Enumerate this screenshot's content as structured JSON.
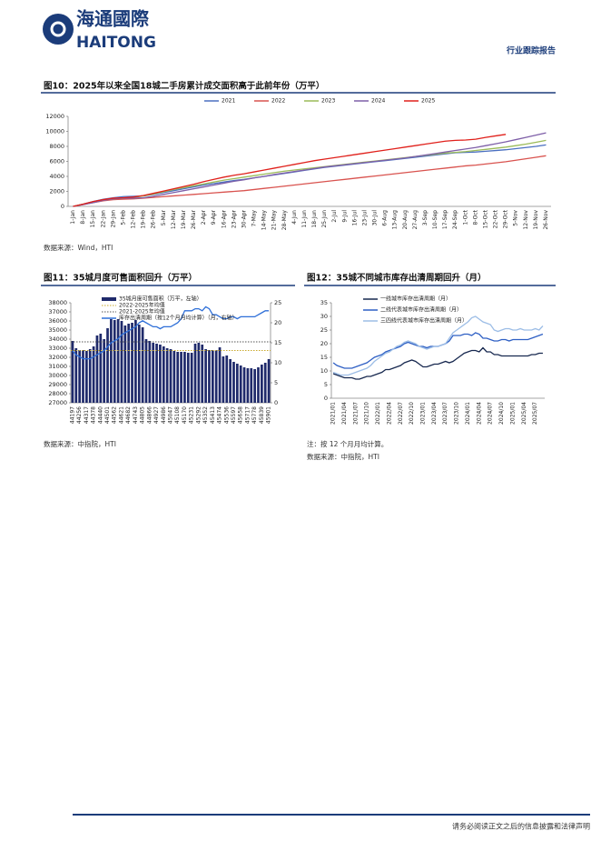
{
  "header": {
    "logo_cn": "海通國際",
    "logo_en": "HAITONG",
    "report_type": "行业跟踪报告"
  },
  "footer": "请务必阅读正文之后的信息披露和法律声明",
  "chart_data": [
    {
      "type": "line",
      "title": "图10：2025年以来全国18城二手房累计成交面积高于此前年份（万平）",
      "source": "数据来源：Wind，HTI",
      "categories": [
        "1-Jan",
        "8-Jan",
        "15-Jan",
        "22-Jan",
        "29-Jan",
        "5-Feb",
        "12-Feb",
        "19-Feb",
        "26-Feb",
        "5-Mar",
        "12-Mar",
        "19-Mar",
        "26-Mar",
        "2-Apr",
        "9-Apr",
        "16-Apr",
        "23-Apr",
        "30-Apr",
        "7-May",
        "14-May",
        "21-May",
        "28-May",
        "4-Jun",
        "11-Jun",
        "18-Jun",
        "25-Jun",
        "2-Jul",
        "9-Jul",
        "16-Jul",
        "23-Jul",
        "30-Jul",
        "6-Aug",
        "13-Aug",
        "20-Aug",
        "27-Aug",
        "3-Sep",
        "10-Sep",
        "17-Sep",
        "24-Sep",
        "1-Oct",
        "8-Oct",
        "15-Oct",
        "22-Oct",
        "29-Oct",
        "5-Nov",
        "12-Nov",
        "19-Nov",
        "26-Nov"
      ],
      "series": [
        {
          "name": "2021",
          "color": "#4a6fc0",
          "values": [
            0,
            300,
            650,
            950,
            1150,
            1300,
            1350,
            1400,
            1600,
            1850,
            2100,
            2350,
            2600,
            2850,
            3050,
            3250,
            3450,
            3600,
            3800,
            4000,
            4200,
            4400,
            4600,
            4800,
            5000,
            5200,
            5350,
            5500,
            5650,
            5800,
            5950,
            6100,
            6250,
            6400,
            6550,
            6700,
            6850,
            7000,
            7150,
            7200,
            7250,
            7350,
            7450,
            7550,
            7700,
            7850,
            8000,
            8200
          ]
        },
        {
          "name": "2022",
          "color": "#d9534f",
          "values": [
            0,
            250,
            500,
            750,
            900,
            950,
            1000,
            1100,
            1200,
            1300,
            1400,
            1500,
            1600,
            1700,
            1800,
            1900,
            2000,
            2100,
            2250,
            2400,
            2550,
            2700,
            2850,
            3000,
            3150,
            3300,
            3450,
            3600,
            3750,
            3900,
            4050,
            4200,
            4350,
            4500,
            4650,
            4800,
            4950,
            5100,
            5250,
            5400,
            5500,
            5650,
            5800,
            5950,
            6150,
            6350,
            6550,
            6750
          ]
        },
        {
          "name": "2023",
          "color": "#9bbb59",
          "values": [
            0,
            300,
            600,
            850,
            1000,
            1100,
            1200,
            1400,
            1650,
            1950,
            2250,
            2500,
            2750,
            3000,
            3250,
            3500,
            3700,
            3900,
            4100,
            4300,
            4500,
            4700,
            4850,
            5000,
            5150,
            5300,
            5450,
            5600,
            5750,
            5900,
            6050,
            6200,
            6350,
            6500,
            6650,
            6800,
            6950,
            7100,
            7200,
            7300,
            7450,
            7600,
            7750,
            7900,
            8100,
            8300,
            8550,
            8800
          ]
        },
        {
          "name": "2024",
          "color": "#7e5fa8",
          "values": [
            0,
            250,
            500,
            800,
            1000,
            1100,
            1100,
            1150,
            1350,
            1600,
            1850,
            2100,
            2350,
            2600,
            2850,
            3100,
            3350,
            3550,
            3800,
            4000,
            4250,
            4450,
            4650,
            4850,
            5050,
            5250,
            5400,
            5550,
            5700,
            5850,
            6000,
            6150,
            6300,
            6450,
            6650,
            6850,
            7050,
            7250,
            7450,
            7650,
            7850,
            8100,
            8350,
            8600,
            8900,
            9200,
            9500,
            9800
          ]
        },
        {
          "name": "2025",
          "color": "#e0201b",
          "values": [
            0,
            300,
            650,
            900,
            1100,
            1150,
            1250,
            1450,
            1750,
            2050,
            2350,
            2650,
            2950,
            3300,
            3600,
            3900,
            4150,
            4350,
            4600,
            4850,
            5100,
            5350,
            5600,
            5850,
            6100,
            6300,
            6500,
            6700,
            6900,
            7100,
            7300,
            7500,
            7700,
            7900,
            8100,
            8300,
            8500,
            8700,
            8800,
            8850,
            8950,
            9200,
            9400,
            9600,
            null,
            null,
            null,
            null
          ]
        }
      ],
      "ylim": [
        0,
        12000
      ],
      "yticks": [
        0,
        2000,
        4000,
        6000,
        8000,
        10000,
        12000
      ],
      "grid": false,
      "legend": "top"
    },
    {
      "type": "combo",
      "title": "图11：35城月度可售面积回升（万平）",
      "source": "数据来源：中指院，HTI",
      "categories": [
        "44197",
        null,
        "44256",
        null,
        "44317",
        null,
        "44378",
        null,
        "44440",
        null,
        "44501",
        null,
        "44562",
        null,
        "44621",
        null,
        "44682",
        null,
        "44743",
        null,
        "44805",
        null,
        "44866",
        null,
        "44927",
        null,
        "44986",
        null,
        "45047",
        null,
        "45108",
        null,
        "45170",
        null,
        "45231",
        null,
        "45292",
        null,
        "45352",
        null,
        "45413",
        null,
        "45474",
        null,
        "45536",
        null,
        "45597",
        null,
        "45658",
        null,
        "45717",
        null,
        "45778",
        null,
        "45839",
        null,
        "45901"
      ],
      "series": [
        {
          "name": "35城月度可售面积（万平，左轴）",
          "kind": "bar",
          "color": "#1f2a6b",
          "values": [
            33800,
            33000,
            32800,
            32800,
            32700,
            32900,
            33200,
            34400,
            34600,
            34000,
            35200,
            36200,
            36100,
            36200,
            36000,
            35500,
            35700,
            35800,
            36100,
            35600,
            35300,
            34000,
            33800,
            33600,
            33500,
            33400,
            33200,
            33000,
            32900,
            32700,
            32600,
            32600,
            32600,
            32500,
            32500,
            33500,
            33600,
            33400,
            32900,
            32800,
            32800,
            32800,
            33100,
            32100,
            32200,
            31800,
            31500,
            31300,
            31100,
            30900,
            30800,
            30800,
            30700,
            30900,
            31200,
            31400,
            31800
          ]
        },
        {
          "name": "2022-2025年均值",
          "kind": "ref",
          "color": "#c9a92c",
          "value": 32750
        },
        {
          "name": "2021-2025年均值",
          "kind": "ref",
          "color": "#555555",
          "value": 33700
        },
        {
          "name": "库存出清周期（按12个月月均计算）（月，右轴）",
          "kind": "line",
          "axis": "y2",
          "color": "#2e6fd8",
          "values": [
            13,
            12,
            11.5,
            11,
            11,
            11,
            11.5,
            12,
            12.5,
            13,
            14,
            15,
            15.5,
            16,
            17,
            17.5,
            18,
            18.5,
            19,
            20,
            20.5,
            20,
            19.5,
            19,
            19,
            18.5,
            19,
            19,
            19,
            19.5,
            20,
            21,
            23,
            23,
            23,
            23.5,
            23.5,
            23,
            24,
            23.5,
            22,
            22,
            21.5,
            21,
            21,
            21.5,
            21.5,
            21,
            21.5,
            21.5,
            21.5,
            21.5,
            21.5,
            22,
            22.5,
            23,
            23
          ]
        }
      ],
      "ylim": [
        27000,
        38000
      ],
      "yticks": [
        27000,
        28000,
        29000,
        30000,
        31000,
        32000,
        33000,
        34000,
        35000,
        36000,
        37000,
        38000
      ],
      "y2lim": [
        0,
        25
      ],
      "y2ticks": [
        0,
        5,
        10,
        15,
        20,
        25
      ],
      "grid": false,
      "legend": "top-left"
    },
    {
      "type": "line",
      "title": "图12：35城不同城市库存出清周期回升（月）",
      "note": "注：按 12 个月月均计算。",
      "source": "数据来源：中指院，HTI",
      "categories": [
        "2021/01",
        null,
        null,
        "2021/04",
        null,
        null,
        "2021/07",
        null,
        null,
        "2021/10",
        null,
        null,
        "2022/01",
        null,
        null,
        "2022/04",
        null,
        null,
        "2022/07",
        null,
        null,
        "2022/10",
        null,
        null,
        "2023/01",
        null,
        null,
        "2023/04",
        null,
        null,
        "2023/07",
        null,
        null,
        "2023/10",
        null,
        null,
        "2024/01",
        null,
        null,
        "2024/04",
        null,
        null,
        "2024/07",
        null,
        null,
        "2024/10",
        null,
        null,
        "2025/01",
        null,
        null,
        "2025/04",
        null,
        null,
        "2025/07",
        null,
        null
      ],
      "series": [
        {
          "name": "一线城市库存出清周期（月）",
          "color": "#17284f",
          "values": [
            9,
            8.5,
            8,
            7.5,
            7.5,
            7.5,
            7,
            7,
            7.5,
            8,
            8,
            8.5,
            9,
            9.5,
            10.5,
            10.5,
            11,
            11.5,
            12,
            13,
            13.5,
            14,
            13.5,
            12.5,
            11.5,
            11.5,
            12,
            12.5,
            12.5,
            13,
            13.5,
            13,
            13.5,
            14.5,
            15.5,
            16.5,
            17,
            17.5,
            17.5,
            17,
            18.5,
            17,
            17,
            16,
            16,
            15.5,
            15.5,
            15.5,
            15.5,
            15.5,
            15.5,
            15.5,
            15.5,
            16,
            16,
            16.5,
            16.5
          ]
        },
        {
          "name": "二线代表城市库存出清周期（月）",
          "color": "#2e5fc4",
          "values": [
            13,
            12,
            11.5,
            11,
            11,
            11,
            11.5,
            12,
            12.5,
            13,
            14,
            15,
            15.5,
            16,
            17,
            17.5,
            18,
            18.5,
            19,
            20,
            20.5,
            20,
            19.5,
            19,
            19,
            18.5,
            19,
            19,
            19,
            19.5,
            20,
            21,
            23,
            23,
            23,
            23.5,
            23.5,
            23,
            24,
            23.5,
            22,
            22,
            21.5,
            21,
            21,
            21.5,
            21.5,
            21,
            21.5,
            21.5,
            21.5,
            21.5,
            21.5,
            22,
            22.5,
            23,
            23.5
          ]
        },
        {
          "name": "三四线代表城市库存出清周期（月）",
          "color": "#9cbde6",
          "values": [
            9.5,
            9,
            8.5,
            8.5,
            8.5,
            9,
            9.5,
            10,
            10.5,
            11,
            12,
            13.5,
            14.5,
            15.5,
            16.5,
            17,
            18,
            19,
            19.5,
            20.5,
            21,
            20.5,
            20,
            19,
            18.5,
            18,
            18.5,
            19,
            19,
            19.5,
            20,
            22,
            24,
            25,
            26,
            27,
            28,
            29.5,
            30,
            29,
            28,
            27.5,
            27,
            25,
            24.5,
            25,
            25.5,
            25.5,
            25,
            25,
            25.5,
            25,
            25,
            25,
            25.5,
            25,
            26.5
          ]
        }
      ],
      "ylim": [
        0,
        35
      ],
      "yticks": [
        0,
        5,
        10,
        15,
        20,
        25,
        30,
        35
      ],
      "grid": false,
      "legend": "top-left"
    }
  ]
}
